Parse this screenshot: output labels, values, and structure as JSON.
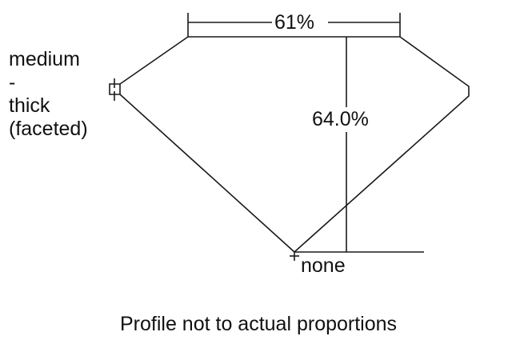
{
  "diagram": {
    "table_percent_label": "61%",
    "depth_percent_label": "64.0%",
    "girdle_label_lines": [
      "medium",
      "-",
      "thick",
      "(faceted)"
    ],
    "culet_label": "none",
    "footnote": "Profile not to actual proportions",
    "line_color": "#1a1a1a"
  }
}
